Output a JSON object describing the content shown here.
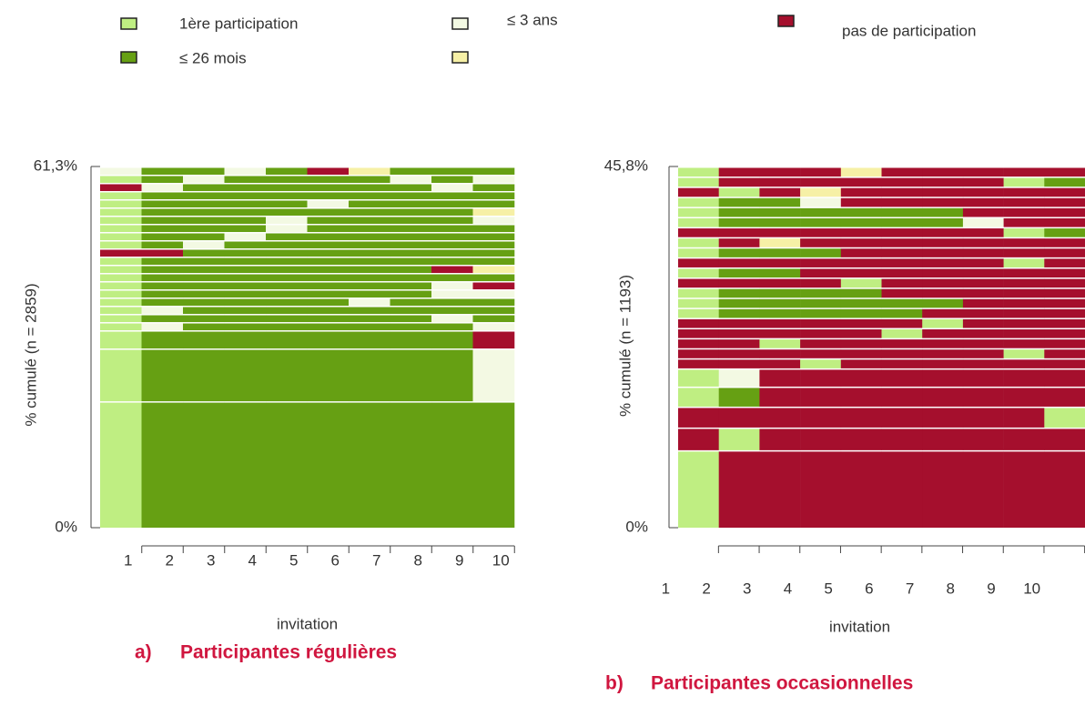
{
  "legend": [
    {
      "name": "1ère participation",
      "color": "#bfee82"
    },
    {
      "name": "≤ 26 mois",
      "color": "#66a013"
    },
    {
      "name": "≤ 3 ans",
      "color": "#f3f9e3"
    },
    {
      "name": null,
      "color": "#f6f0a6"
    },
    {
      "name": "pas de participation",
      "color": "#a50f2d"
    }
  ],
  "chart_data": [
    {
      "type": "sequence",
      "label": "a)",
      "title": "Participantes régulières",
      "ylabel": "% cumulé (n = 2859)",
      "xlabel": "invitation",
      "categories": [
        "1",
        "2",
        "3",
        "4",
        "5",
        "6",
        "7",
        "8",
        "9",
        "10"
      ],
      "ylim": [
        0,
        61.3
      ],
      "yticks": [
        {
          "value": 0,
          "label": "0%"
        },
        {
          "value": 61.3,
          "label": "61,3%"
        }
      ],
      "sequences": [
        {
          "weight": 21.45,
          "states": [
            1,
            2,
            2,
            2,
            2,
            2,
            2,
            2,
            2,
            2
          ]
        },
        {
          "weight": 8.96,
          "states": [
            1,
            2,
            2,
            2,
            2,
            2,
            2,
            2,
            2,
            3
          ]
        },
        {
          "weight": 3.09,
          "states": [
            1,
            2,
            2,
            2,
            2,
            2,
            2,
            2,
            2,
            5
          ]
        },
        {
          "weight": 1.39,
          "states": [
            1,
            3,
            2,
            2,
            2,
            2,
            2,
            2,
            2,
            3
          ]
        },
        {
          "weight": 1.39,
          "states": [
            1,
            2,
            2,
            2,
            2,
            2,
            2,
            2,
            3,
            2
          ]
        },
        {
          "weight": 1.39,
          "states": [
            1,
            3,
            2,
            2,
            2,
            2,
            2,
            2,
            2,
            2
          ]
        },
        {
          "weight": 1.39,
          "states": [
            1,
            2,
            2,
            2,
            2,
            2,
            3,
            2,
            2,
            2
          ]
        },
        {
          "weight": 1.39,
          "states": [
            1,
            2,
            2,
            2,
            2,
            2,
            2,
            2,
            3,
            3
          ]
        },
        {
          "weight": 1.39,
          "states": [
            1,
            2,
            2,
            2,
            2,
            2,
            2,
            2,
            3,
            5
          ]
        },
        {
          "weight": 1.39,
          "states": [
            1,
            2,
            2,
            2,
            2,
            2,
            2,
            2,
            2,
            2
          ]
        },
        {
          "weight": 1.39,
          "states": [
            1,
            2,
            2,
            2,
            2,
            2,
            2,
            2,
            5,
            4
          ]
        },
        {
          "weight": 1.39,
          "states": [
            1,
            2,
            2,
            2,
            2,
            2,
            2,
            2,
            2,
            2
          ]
        },
        {
          "weight": 1.39,
          "states": [
            5,
            5,
            2,
            2,
            2,
            2,
            2,
            2,
            2,
            2
          ]
        },
        {
          "weight": 1.39,
          "states": [
            1,
            2,
            3,
            2,
            2,
            2,
            2,
            2,
            2,
            2
          ]
        },
        {
          "weight": 1.39,
          "states": [
            1,
            2,
            2,
            3,
            2,
            2,
            2,
            2,
            2,
            2
          ]
        },
        {
          "weight": 1.39,
          "states": [
            1,
            2,
            2,
            2,
            3,
            2,
            2,
            2,
            2,
            2
          ]
        },
        {
          "weight": 1.39,
          "states": [
            1,
            2,
            2,
            2,
            3,
            2,
            2,
            2,
            2,
            3
          ]
        },
        {
          "weight": 1.39,
          "states": [
            1,
            2,
            2,
            2,
            2,
            2,
            2,
            2,
            2,
            4
          ]
        },
        {
          "weight": 1.39,
          "states": [
            1,
            2,
            2,
            2,
            2,
            3,
            2,
            2,
            2,
            2
          ]
        },
        {
          "weight": 1.39,
          "states": [
            1,
            2,
            2,
            2,
            2,
            2,
            2,
            2,
            2,
            2
          ]
        },
        {
          "weight": 1.39,
          "states": [
            5,
            3,
            2,
            2,
            2,
            2,
            2,
            2,
            3,
            2
          ]
        },
        {
          "weight": 1.39,
          "states": [
            1,
            2,
            3,
            2,
            2,
            2,
            2,
            3,
            2,
            3
          ]
        },
        {
          "weight": 1.39,
          "states": [
            3,
            2,
            2,
            3,
            2,
            5,
            4,
            2,
            2,
            2
          ]
        }
      ]
    },
    {
      "type": "sequence",
      "label": "b)",
      "title": "Participantes occasionnelles",
      "ylabel": "% cumulé (n = 1193)",
      "xlabel": "invitation",
      "categories": [
        "1",
        "2",
        "3",
        "4",
        "5",
        "6",
        "7",
        "8",
        "9",
        "10"
      ],
      "ylim": [
        0,
        45.8
      ],
      "yticks": [
        {
          "value": 0,
          "label": "0%"
        },
        {
          "value": 45.8,
          "label": "45,8%"
        }
      ],
      "sequences": [
        {
          "weight": 9.82,
          "states": [
            1,
            5,
            5,
            5,
            5,
            5,
            5,
            5,
            5,
            5
          ]
        },
        {
          "weight": 2.88,
          "states": [
            5,
            1,
            5,
            5,
            5,
            5,
            5,
            5,
            5,
            5
          ]
        },
        {
          "weight": 2.65,
          "states": [
            5,
            5,
            5,
            5,
            5,
            5,
            5,
            5,
            5,
            1
          ]
        },
        {
          "weight": 2.54,
          "states": [
            1,
            2,
            5,
            5,
            5,
            5,
            5,
            5,
            5,
            5
          ]
        },
        {
          "weight": 2.31,
          "states": [
            1,
            3,
            5,
            5,
            5,
            5,
            5,
            5,
            5,
            5
          ]
        },
        {
          "weight": 1.28,
          "states": [
            5,
            5,
            5,
            1,
            5,
            5,
            5,
            5,
            5,
            5
          ]
        },
        {
          "weight": 1.28,
          "states": [
            5,
            5,
            5,
            5,
            5,
            5,
            5,
            5,
            1,
            5
          ]
        },
        {
          "weight": 1.28,
          "states": [
            5,
            5,
            1,
            5,
            5,
            5,
            5,
            5,
            5,
            5
          ]
        },
        {
          "weight": 1.28,
          "states": [
            5,
            5,
            5,
            5,
            5,
            1,
            5,
            5,
            5,
            5
          ]
        },
        {
          "weight": 1.28,
          "states": [
            5,
            5,
            5,
            5,
            5,
            5,
            1,
            5,
            5,
            5
          ]
        },
        {
          "weight": 1.28,
          "states": [
            1,
            2,
            2,
            2,
            2,
            2,
            5,
            5,
            5,
            5
          ]
        },
        {
          "weight": 1.28,
          "states": [
            1,
            2,
            2,
            2,
            2,
            2,
            2,
            5,
            5,
            5
          ]
        },
        {
          "weight": 1.28,
          "states": [
            1,
            2,
            2,
            2,
            2,
            5,
            5,
            5,
            5,
            5
          ]
        },
        {
          "weight": 1.28,
          "states": [
            5,
            5,
            5,
            5,
            1,
            5,
            5,
            5,
            5,
            5
          ]
        },
        {
          "weight": 1.28,
          "states": [
            1,
            2,
            2,
            5,
            5,
            5,
            5,
            5,
            5,
            5
          ]
        },
        {
          "weight": 1.28,
          "states": [
            5,
            5,
            5,
            5,
            5,
            5,
            5,
            5,
            1,
            5
          ]
        },
        {
          "weight": 1.28,
          "states": [
            1,
            2,
            2,
            2,
            5,
            5,
            5,
            5,
            5,
            5
          ]
        },
        {
          "weight": 1.28,
          "states": [
            1,
            5,
            4,
            5,
            5,
            5,
            5,
            5,
            5,
            5
          ]
        },
        {
          "weight": 1.28,
          "states": [
            5,
            5,
            5,
            5,
            5,
            5,
            5,
            5,
            1,
            2
          ]
        },
        {
          "weight": 1.28,
          "states": [
            1,
            2,
            2,
            2,
            2,
            2,
            2,
            3,
            5,
            5
          ]
        },
        {
          "weight": 1.28,
          "states": [
            1,
            2,
            2,
            2,
            2,
            2,
            2,
            5,
            5,
            5
          ]
        },
        {
          "weight": 1.28,
          "states": [
            1,
            2,
            2,
            3,
            5,
            5,
            5,
            5,
            5,
            5
          ]
        },
        {
          "weight": 1.28,
          "states": [
            5,
            1,
            5,
            4,
            5,
            5,
            5,
            5,
            5,
            5
          ]
        },
        {
          "weight": 1.28,
          "states": [
            1,
            5,
            5,
            5,
            5,
            5,
            5,
            5,
            1,
            2
          ]
        },
        {
          "weight": 1.28,
          "states": [
            1,
            5,
            5,
            5,
            4,
            5,
            5,
            5,
            5,
            5
          ]
        }
      ]
    }
  ]
}
